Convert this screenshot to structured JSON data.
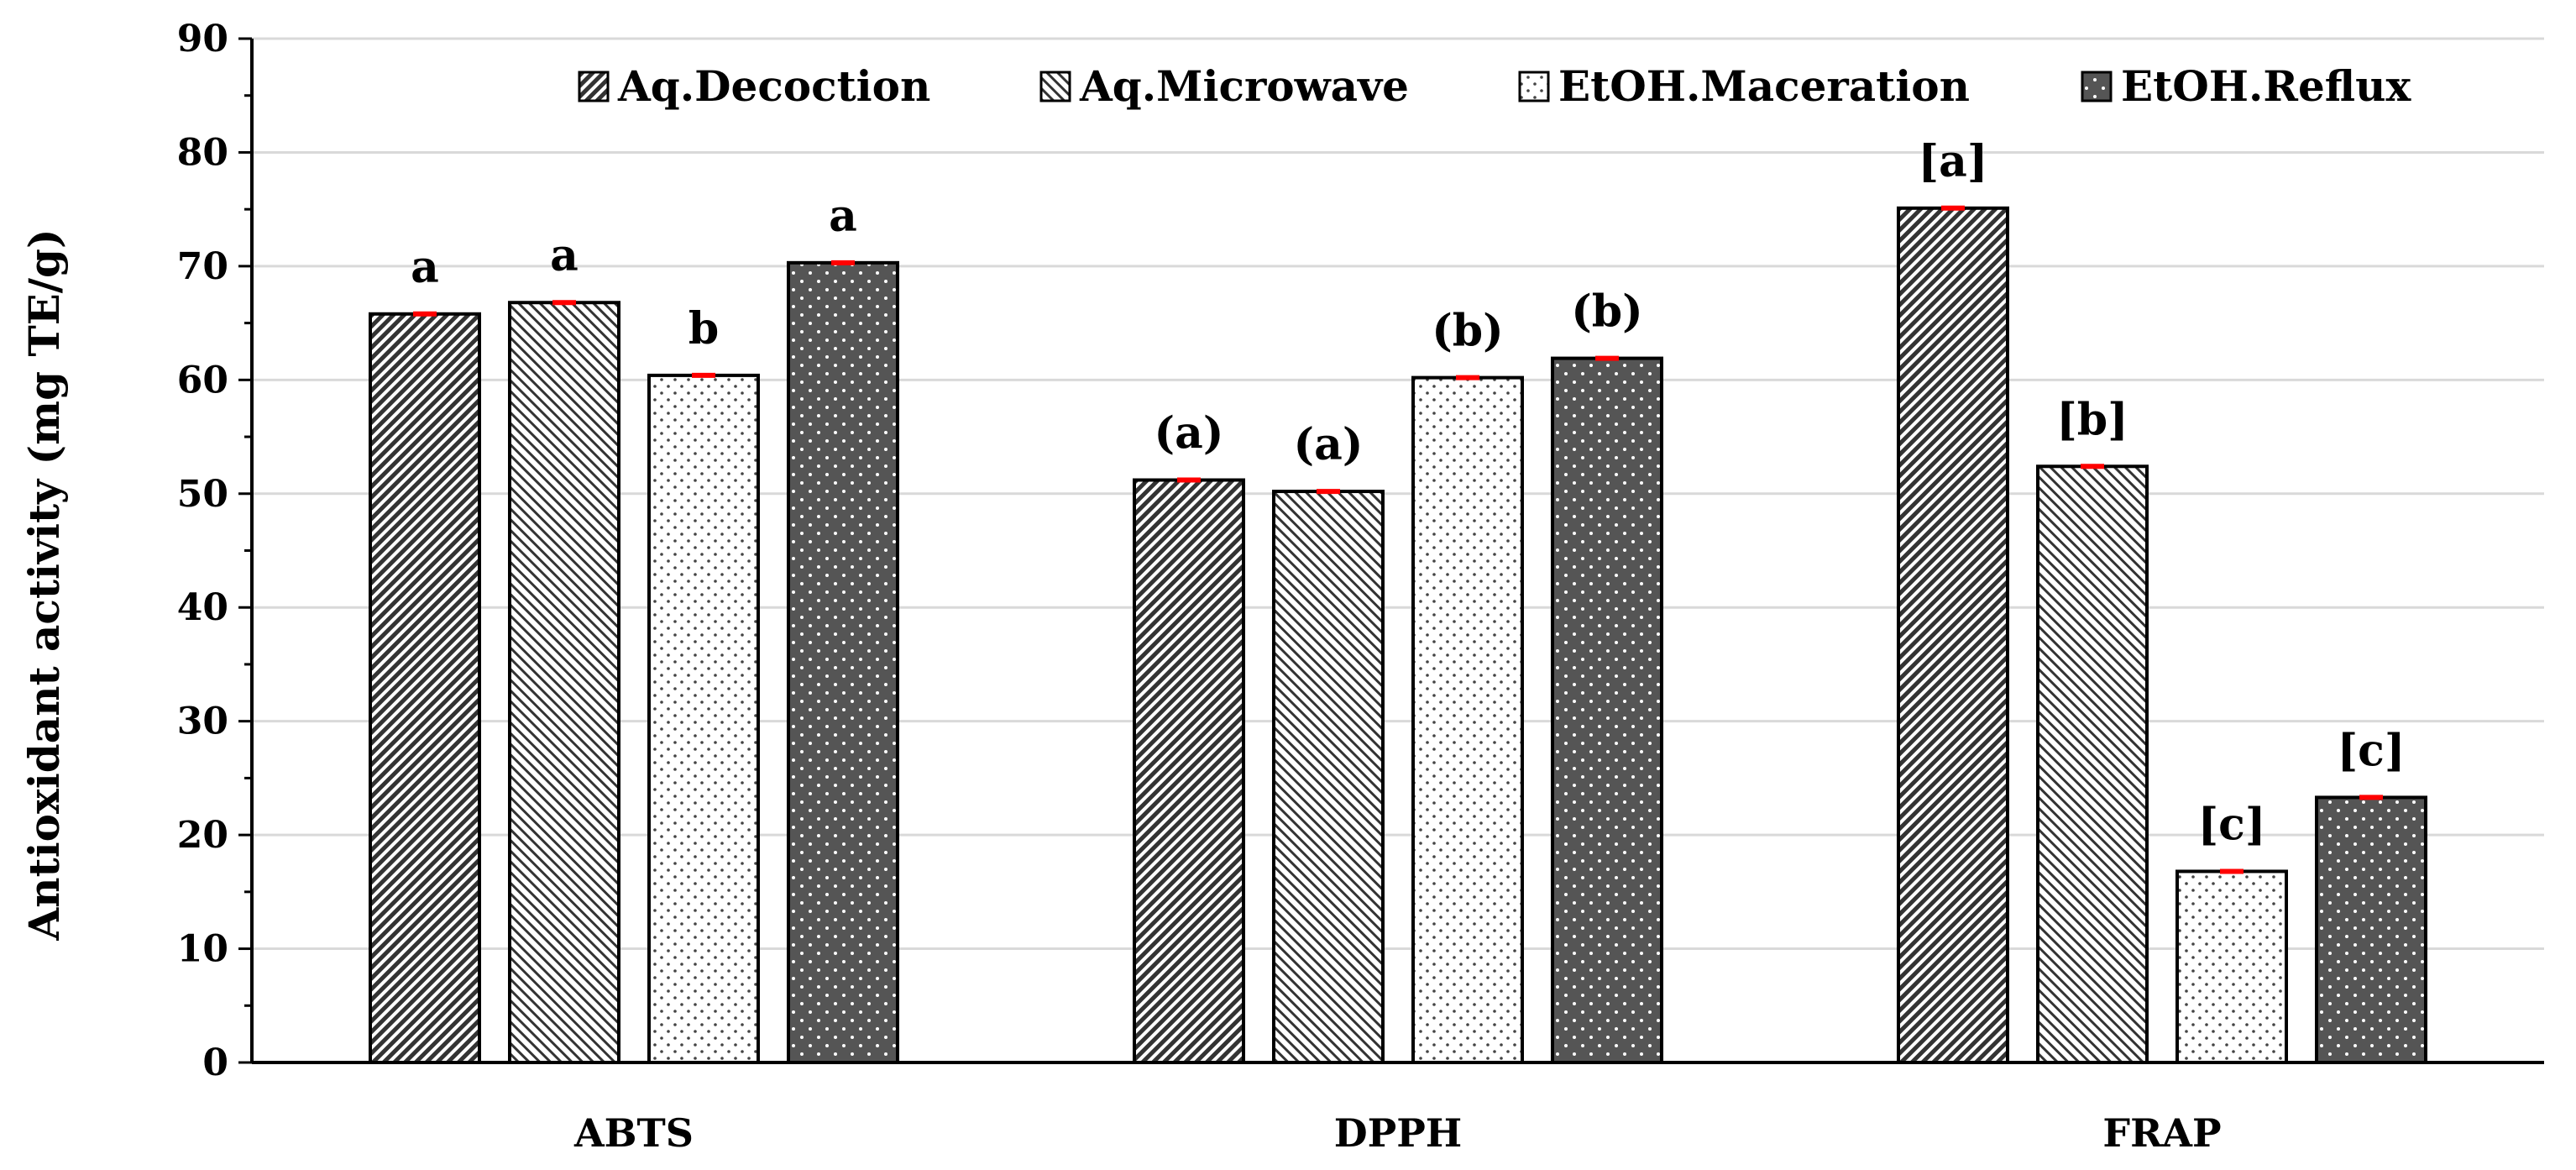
{
  "chart_data": {
    "type": "bar",
    "title": "",
    "xlabel": "",
    "ylabel": "Antioxidant activity (mg TE/g)",
    "ylim": [
      0,
      90
    ],
    "yticks": [
      0,
      10,
      20,
      30,
      40,
      50,
      60,
      70,
      80,
      90
    ],
    "ytick_labels": [
      "0",
      "10",
      "20",
      "30",
      "40",
      "50",
      "60",
      "70",
      "80",
      "90"
    ],
    "grid": true,
    "legend_position": "top-right",
    "categories": [
      "ABTS",
      "DPPH",
      "FRAP"
    ],
    "series": [
      {
        "name": "Aq.Decoction",
        "pattern": "dense-diagonal",
        "values": [
          65.8,
          51.2,
          75.1
        ],
        "labels": [
          "a",
          "(a)",
          "[a]"
        ]
      },
      {
        "name": "Aq.Microwave",
        "pattern": "diagonal",
        "values": [
          66.8,
          50.2,
          52.4
        ],
        "labels": [
          "a",
          "(a)",
          "[b]"
        ]
      },
      {
        "name": "EtOH.Maceration",
        "pattern": "dots",
        "values": [
          60.4,
          60.2,
          16.8
        ],
        "labels": [
          "b",
          "(b)",
          "[c]"
        ]
      },
      {
        "name": "EtOH.Reflux",
        "pattern": "dark-dots",
        "values": [
          70.3,
          61.9,
          23.3
        ],
        "labels": [
          "a",
          "(b)",
          "[c]"
        ]
      }
    ],
    "colors": {
      "dark_fill": "#555555",
      "error_bar": "#ff0000",
      "grid": "#d9d9d9",
      "axis": "#000000"
    }
  }
}
